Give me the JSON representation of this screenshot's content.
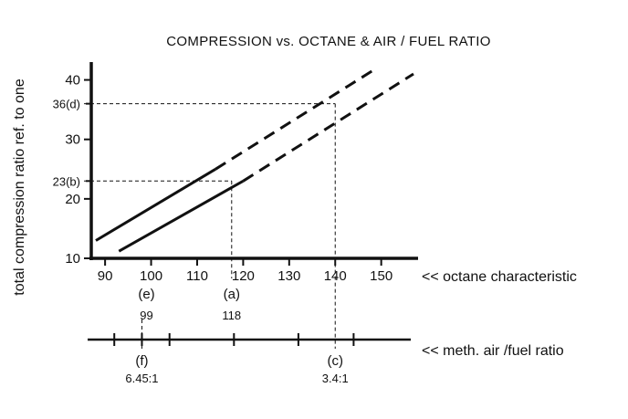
{
  "chart_data": {
    "type": "line",
    "title": "COMPRESSION vs. OCTANE & AIR / FUEL RATIO",
    "ylabel": "total compression ratio ref. to one",
    "xlabel": "<< octane characteristic",
    "x2label": "<< meth. air /fuel ratio",
    "xlim": [
      87,
      158
    ],
    "ylim": [
      10,
      43
    ],
    "x_ticks": [
      90,
      100,
      110,
      120,
      130,
      140,
      150
    ],
    "y_ticks": [
      10,
      20,
      30,
      40
    ],
    "series": [
      {
        "solid": [
          [
            88,
            13
          ],
          [
            114,
            25
          ]
        ],
        "dashed": [
          [
            114,
            25
          ],
          [
            148,
            41.5
          ]
        ]
      },
      {
        "solid": [
          [
            93,
            11.2
          ],
          [
            120,
            23
          ]
        ],
        "dashed": [
          [
            120,
            23
          ],
          [
            157,
            41
          ]
        ]
      }
    ],
    "annotations": {
      "y_markers": [
        {
          "value": 36,
          "label": "36(d)",
          "to_x": 140
        },
        {
          "value": 23,
          "label": "23(b)",
          "to_x": 117.5
        }
      ],
      "x_markers": [
        {
          "value": 99,
          "letter": "(e)",
          "number": "99"
        },
        {
          "value": 117.5,
          "letter": "(a)",
          "number": "118"
        }
      ],
      "air_fuel_markers": [
        {
          "at_x": 98,
          "letter": "(f)",
          "number": "6.45:1"
        },
        {
          "at_x": 140,
          "letter": "(c)",
          "number": "3.4:1"
        }
      ],
      "air_fuel_ticks_at_x": [
        92,
        98,
        104,
        118,
        132,
        144
      ]
    }
  }
}
